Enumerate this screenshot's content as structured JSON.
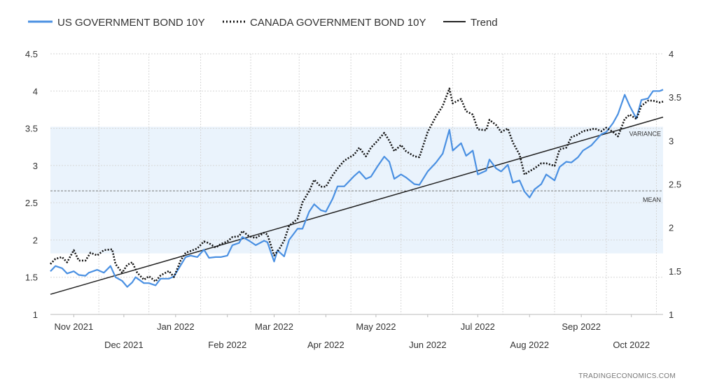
{
  "chart_data": {
    "type": "line",
    "legend_position": "top-left",
    "grid": true,
    "x_range": [
      "2021-10-18",
      "2022-10-20"
    ],
    "y_left": {
      "min": 1,
      "max": 4.5,
      "ticks": [
        "1",
        "1.5",
        "2",
        "2.5",
        "3",
        "3.5",
        "4",
        "4.5"
      ]
    },
    "y_right": {
      "min": 1,
      "max": 4,
      "ticks": [
        "1",
        "1.5",
        "2",
        "2.5",
        "3",
        "3.5",
        "4"
      ]
    },
    "x_ticks_upper": [
      {
        "label": "Nov 2021",
        "date": "2021-11-01"
      },
      {
        "label": "Jan 2022",
        "date": "2022-01-01"
      },
      {
        "label": "Mar 2022",
        "date": "2022-03-01"
      },
      {
        "label": "May 2022",
        "date": "2022-05-01"
      },
      {
        "label": "Jul 2022",
        "date": "2022-07-01"
      },
      {
        "label": "Sep 2022",
        "date": "2022-09-01"
      }
    ],
    "x_ticks_lower": [
      {
        "label": "Dec 2021",
        "date": "2021-12-01"
      },
      {
        "label": "Feb 2022",
        "date": "2022-02-01"
      },
      {
        "label": "Apr 2022",
        "date": "2022-04-01"
      },
      {
        "label": "Jun 2022",
        "date": "2022-06-01"
      },
      {
        "label": "Aug 2022",
        "date": "2022-08-01"
      },
      {
        "label": "Oct 2022",
        "date": "2022-10-01"
      }
    ],
    "series": [
      {
        "name": "US GOVERNMENT BOND 10Y",
        "axis": "left",
        "color": "#4a90e2",
        "style": "solid",
        "points": [
          [
            "2021-10-18",
            1.58
          ],
          [
            "2021-10-21",
            1.65
          ],
          [
            "2021-10-25",
            1.62
          ],
          [
            "2021-10-28",
            1.55
          ],
          [
            "2021-11-01",
            1.58
          ],
          [
            "2021-11-04",
            1.53
          ],
          [
            "2021-11-08",
            1.52
          ],
          [
            "2021-11-10",
            1.56
          ],
          [
            "2021-11-15",
            1.6
          ],
          [
            "2021-11-19",
            1.56
          ],
          [
            "2021-11-23",
            1.65
          ],
          [
            "2021-11-26",
            1.5
          ],
          [
            "2021-11-30",
            1.45
          ],
          [
            "2021-12-03",
            1.37
          ],
          [
            "2021-12-06",
            1.43
          ],
          [
            "2021-12-08",
            1.5
          ],
          [
            "2021-12-13",
            1.42
          ],
          [
            "2021-12-16",
            1.42
          ],
          [
            "2021-12-20",
            1.39
          ],
          [
            "2021-12-23",
            1.48
          ],
          [
            "2021-12-28",
            1.48
          ],
          [
            "2021-12-31",
            1.51
          ],
          [
            "2022-01-04",
            1.66
          ],
          [
            "2022-01-07",
            1.77
          ],
          [
            "2022-01-10",
            1.79
          ],
          [
            "2022-01-14",
            1.77
          ],
          [
            "2022-01-18",
            1.87
          ],
          [
            "2022-01-21",
            1.76
          ],
          [
            "2022-01-25",
            1.77
          ],
          [
            "2022-01-28",
            1.77
          ],
          [
            "2022-02-01",
            1.79
          ],
          [
            "2022-02-04",
            1.93
          ],
          [
            "2022-02-08",
            1.96
          ],
          [
            "2022-02-10",
            2.04
          ],
          [
            "2022-02-14",
            1.99
          ],
          [
            "2022-02-18",
            1.93
          ],
          [
            "2022-02-23",
            1.99
          ],
          [
            "2022-02-25",
            1.97
          ],
          [
            "2022-03-01",
            1.71
          ],
          [
            "2022-03-03",
            1.86
          ],
          [
            "2022-03-07",
            1.78
          ],
          [
            "2022-03-10",
            2.0
          ],
          [
            "2022-03-15",
            2.15
          ],
          [
            "2022-03-18",
            2.15
          ],
          [
            "2022-03-22",
            2.38
          ],
          [
            "2022-03-25",
            2.48
          ],
          [
            "2022-03-29",
            2.4
          ],
          [
            "2022-04-01",
            2.38
          ],
          [
            "2022-04-05",
            2.55
          ],
          [
            "2022-04-08",
            2.72
          ],
          [
            "2022-04-12",
            2.72
          ],
          [
            "2022-04-18",
            2.86
          ],
          [
            "2022-04-21",
            2.92
          ],
          [
            "2022-04-25",
            2.82
          ],
          [
            "2022-04-28",
            2.85
          ],
          [
            "2022-05-02",
            2.99
          ],
          [
            "2022-05-06",
            3.12
          ],
          [
            "2022-05-09",
            3.05
          ],
          [
            "2022-05-12",
            2.82
          ],
          [
            "2022-05-16",
            2.88
          ],
          [
            "2022-05-19",
            2.84
          ],
          [
            "2022-05-24",
            2.75
          ],
          [
            "2022-05-27",
            2.74
          ],
          [
            "2022-06-01",
            2.92
          ],
          [
            "2022-06-06",
            3.04
          ],
          [
            "2022-06-10",
            3.16
          ],
          [
            "2022-06-14",
            3.48
          ],
          [
            "2022-06-16",
            3.2
          ],
          [
            "2022-06-21",
            3.3
          ],
          [
            "2022-06-24",
            3.13
          ],
          [
            "2022-06-28",
            3.2
          ],
          [
            "2022-07-01",
            2.88
          ],
          [
            "2022-07-06",
            2.93
          ],
          [
            "2022-07-08",
            3.08
          ],
          [
            "2022-07-12",
            2.96
          ],
          [
            "2022-07-15",
            2.92
          ],
          [
            "2022-07-19",
            3.01
          ],
          [
            "2022-07-22",
            2.77
          ],
          [
            "2022-07-26",
            2.8
          ],
          [
            "2022-07-29",
            2.65
          ],
          [
            "2022-08-01",
            2.57
          ],
          [
            "2022-08-04",
            2.68
          ],
          [
            "2022-08-08",
            2.75
          ],
          [
            "2022-08-11",
            2.88
          ],
          [
            "2022-08-16",
            2.8
          ],
          [
            "2022-08-19",
            2.98
          ],
          [
            "2022-08-23",
            3.05
          ],
          [
            "2022-08-26",
            3.04
          ],
          [
            "2022-08-30",
            3.11
          ],
          [
            "2022-09-02",
            3.2
          ],
          [
            "2022-09-07",
            3.27
          ],
          [
            "2022-09-09",
            3.32
          ],
          [
            "2022-09-13",
            3.42
          ],
          [
            "2022-09-16",
            3.45
          ],
          [
            "2022-09-20",
            3.57
          ],
          [
            "2022-09-23",
            3.69
          ],
          [
            "2022-09-27",
            3.95
          ],
          [
            "2022-09-30",
            3.8
          ],
          [
            "2022-10-04",
            3.63
          ],
          [
            "2022-10-07",
            3.88
          ],
          [
            "2022-10-11",
            3.9
          ],
          [
            "2022-10-14",
            4.0
          ],
          [
            "2022-10-18",
            4.0
          ],
          [
            "2022-10-20",
            4.02
          ]
        ]
      },
      {
        "name": "CANADA GOVERNMENT BOND 10Y",
        "axis": "right",
        "color": "#111111",
        "style": "dotted",
        "points": [
          [
            "2021-10-18",
            1.58
          ],
          [
            "2021-10-21",
            1.64
          ],
          [
            "2021-10-25",
            1.66
          ],
          [
            "2021-10-28",
            1.6
          ],
          [
            "2021-11-01",
            1.74
          ],
          [
            "2021-11-04",
            1.62
          ],
          [
            "2021-11-08",
            1.62
          ],
          [
            "2021-11-11",
            1.71
          ],
          [
            "2021-11-15",
            1.68
          ],
          [
            "2021-11-19",
            1.74
          ],
          [
            "2021-11-24",
            1.75
          ],
          [
            "2021-11-26",
            1.58
          ],
          [
            "2021-11-30",
            1.48
          ],
          [
            "2021-12-03",
            1.57
          ],
          [
            "2021-12-06",
            1.6
          ],
          [
            "2021-12-09",
            1.48
          ],
          [
            "2021-12-13",
            1.4
          ],
          [
            "2021-12-16",
            1.44
          ],
          [
            "2021-12-20",
            1.38
          ],
          [
            "2021-12-23",
            1.45
          ],
          [
            "2021-12-28",
            1.5
          ],
          [
            "2021-12-31",
            1.43
          ],
          [
            "2022-01-04",
            1.62
          ],
          [
            "2022-01-07",
            1.71
          ],
          [
            "2022-01-10",
            1.73
          ],
          [
            "2022-01-14",
            1.76
          ],
          [
            "2022-01-18",
            1.84
          ],
          [
            "2022-01-21",
            1.82
          ],
          [
            "2022-01-25",
            1.77
          ],
          [
            "2022-01-28",
            1.81
          ],
          [
            "2022-02-01",
            1.84
          ],
          [
            "2022-02-04",
            1.89
          ],
          [
            "2022-02-08",
            1.9
          ],
          [
            "2022-02-10",
            1.96
          ],
          [
            "2022-02-14",
            1.9
          ],
          [
            "2022-02-18",
            1.88
          ],
          [
            "2022-02-23",
            1.94
          ],
          [
            "2022-02-25",
            1.92
          ],
          [
            "2022-03-01",
            1.68
          ],
          [
            "2022-03-04",
            1.75
          ],
          [
            "2022-03-07",
            1.85
          ],
          [
            "2022-03-10",
            2.02
          ],
          [
            "2022-03-15",
            2.1
          ],
          [
            "2022-03-18",
            2.29
          ],
          [
            "2022-03-22",
            2.42
          ],
          [
            "2022-03-25",
            2.55
          ],
          [
            "2022-03-29",
            2.47
          ],
          [
            "2022-04-01",
            2.47
          ],
          [
            "2022-04-05",
            2.6
          ],
          [
            "2022-04-08",
            2.68
          ],
          [
            "2022-04-12",
            2.77
          ],
          [
            "2022-04-18",
            2.84
          ],
          [
            "2022-04-21",
            2.92
          ],
          [
            "2022-04-25",
            2.82
          ],
          [
            "2022-04-28",
            2.92
          ],
          [
            "2022-05-02",
            3.0
          ],
          [
            "2022-05-06",
            3.09
          ],
          [
            "2022-05-09",
            3.0
          ],
          [
            "2022-05-12",
            2.88
          ],
          [
            "2022-05-16",
            2.95
          ],
          [
            "2022-05-19",
            2.88
          ],
          [
            "2022-05-24",
            2.82
          ],
          [
            "2022-05-27",
            2.81
          ],
          [
            "2022-06-01",
            3.1
          ],
          [
            "2022-06-06",
            3.28
          ],
          [
            "2022-06-10",
            3.4
          ],
          [
            "2022-06-14",
            3.6
          ],
          [
            "2022-06-16",
            3.43
          ],
          [
            "2022-06-21",
            3.48
          ],
          [
            "2022-06-24",
            3.34
          ],
          [
            "2022-06-28",
            3.3
          ],
          [
            "2022-07-01",
            3.13
          ],
          [
            "2022-07-06",
            3.12
          ],
          [
            "2022-07-08",
            3.24
          ],
          [
            "2022-07-12",
            3.18
          ],
          [
            "2022-07-15",
            3.1
          ],
          [
            "2022-07-19",
            3.14
          ],
          [
            "2022-07-22",
            2.98
          ],
          [
            "2022-07-26",
            2.84
          ],
          [
            "2022-07-29",
            2.61
          ],
          [
            "2022-08-01",
            2.65
          ],
          [
            "2022-08-04",
            2.68
          ],
          [
            "2022-08-08",
            2.74
          ],
          [
            "2022-08-11",
            2.74
          ],
          [
            "2022-08-16",
            2.71
          ],
          [
            "2022-08-19",
            2.9
          ],
          [
            "2022-08-23",
            2.92
          ],
          [
            "2022-08-26",
            3.04
          ],
          [
            "2022-08-30",
            3.07
          ],
          [
            "2022-09-02",
            3.11
          ],
          [
            "2022-09-07",
            3.13
          ],
          [
            "2022-09-09",
            3.14
          ],
          [
            "2022-09-13",
            3.11
          ],
          [
            "2022-09-16",
            3.15
          ],
          [
            "2022-09-20",
            3.1
          ],
          [
            "2022-09-23",
            3.05
          ],
          [
            "2022-09-27",
            3.25
          ],
          [
            "2022-09-30",
            3.3
          ],
          [
            "2022-10-04",
            3.25
          ],
          [
            "2022-10-07",
            3.4
          ],
          [
            "2022-10-11",
            3.46
          ],
          [
            "2022-10-14",
            3.46
          ],
          [
            "2022-10-18",
            3.44
          ],
          [
            "2022-10-20",
            3.45
          ]
        ]
      },
      {
        "name": "Trend",
        "axis": "left",
        "color": "#222222",
        "style": "solid",
        "points": [
          [
            "2021-10-18",
            1.27
          ],
          [
            "2022-10-20",
            3.65
          ]
        ]
      }
    ],
    "annotations": [
      {
        "label": "MEAN",
        "value": 2.66,
        "axis": "left"
      },
      {
        "label": "VARIANCE",
        "band": [
          1.82,
          3.52
        ],
        "axis": "left"
      }
    ]
  },
  "credit": "TRADINGECONOMICS.COM",
  "colors": {
    "band": "#eaf3fc",
    "grid": "#d6d6d6",
    "mean_line": "#777777"
  }
}
